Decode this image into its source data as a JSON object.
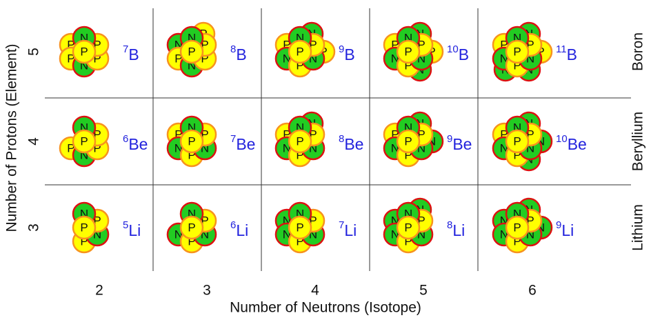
{
  "x_axis_label": "Number of Neutrons (Isotope)",
  "y_axis_label": "Number of Protons (Element)",
  "columns": [
    "2",
    "3",
    "4",
    "5",
    "6"
  ],
  "rows": [
    {
      "protons": "5",
      "element": "Boron",
      "cells": [
        {
          "mass": "7",
          "symbol": "B",
          "nucleons": [
            "P",
            "N",
            "P",
            "P",
            "N",
            "P",
            "P"
          ]
        },
        {
          "mass": "8",
          "symbol": "B",
          "nucleons": [
            "P",
            "N",
            "P",
            "P",
            "N",
            "P",
            "N",
            "P"
          ]
        },
        {
          "mass": "9",
          "symbol": "B",
          "nucleons": [
            "P",
            "N",
            "P",
            "N",
            "P",
            "N",
            "P",
            "N",
            "P"
          ]
        },
        {
          "mass": "10",
          "symbol": "B",
          "nucleons": [
            "P",
            "N",
            "P",
            "N",
            "P",
            "N",
            "P",
            "N",
            "P",
            "N"
          ]
        },
        {
          "mass": "11",
          "symbol": "B",
          "nucleons": [
            "P",
            "N",
            "P",
            "N",
            "P",
            "N",
            "P",
            "N",
            "P",
            "N",
            "N"
          ]
        }
      ]
    },
    {
      "protons": "4",
      "element": "Beryllium",
      "cells": [
        {
          "mass": "6",
          "symbol": "Be",
          "nucleons": [
            "P",
            "N",
            "P",
            "P",
            "N",
            "P"
          ]
        },
        {
          "mass": "7",
          "symbol": "Be",
          "nucleons": [
            "P",
            "N",
            "P",
            "N",
            "P",
            "N",
            "P"
          ]
        },
        {
          "mass": "8",
          "symbol": "Be",
          "nucleons": [
            "P",
            "N",
            "P",
            "N",
            "P",
            "N",
            "P",
            "N"
          ]
        },
        {
          "mass": "9",
          "symbol": "Be",
          "nucleons": [
            "P",
            "N",
            "P",
            "N",
            "P",
            "N",
            "P",
            "N",
            "N"
          ]
        },
        {
          "mass": "10",
          "symbol": "Be",
          "nucleons": [
            "P",
            "N",
            "P",
            "N",
            "P",
            "N",
            "P",
            "N",
            "N",
            "N"
          ]
        }
      ]
    },
    {
      "protons": "3",
      "element": "Lithium",
      "cells": [
        {
          "mass": "5",
          "symbol": "Li",
          "nucleons": [
            "P",
            "N",
            "P",
            "N",
            "P"
          ]
        },
        {
          "mass": "6",
          "symbol": "Li",
          "nucleons": [
            "P",
            "N",
            "P",
            "N",
            "P",
            "N"
          ]
        },
        {
          "mass": "7",
          "symbol": "Li",
          "nucleons": [
            "P",
            "N",
            "P",
            "N",
            "P",
            "N",
            "N"
          ]
        },
        {
          "mass": "8",
          "symbol": "Li",
          "nucleons": [
            "P",
            "N",
            "P",
            "N",
            "P",
            "N",
            "N",
            "N"
          ]
        },
        {
          "mass": "9",
          "symbol": "Li",
          "nucleons": [
            "P",
            "N",
            "P",
            "N",
            "P",
            "N",
            "N",
            "N",
            "N"
          ]
        }
      ]
    }
  ]
}
